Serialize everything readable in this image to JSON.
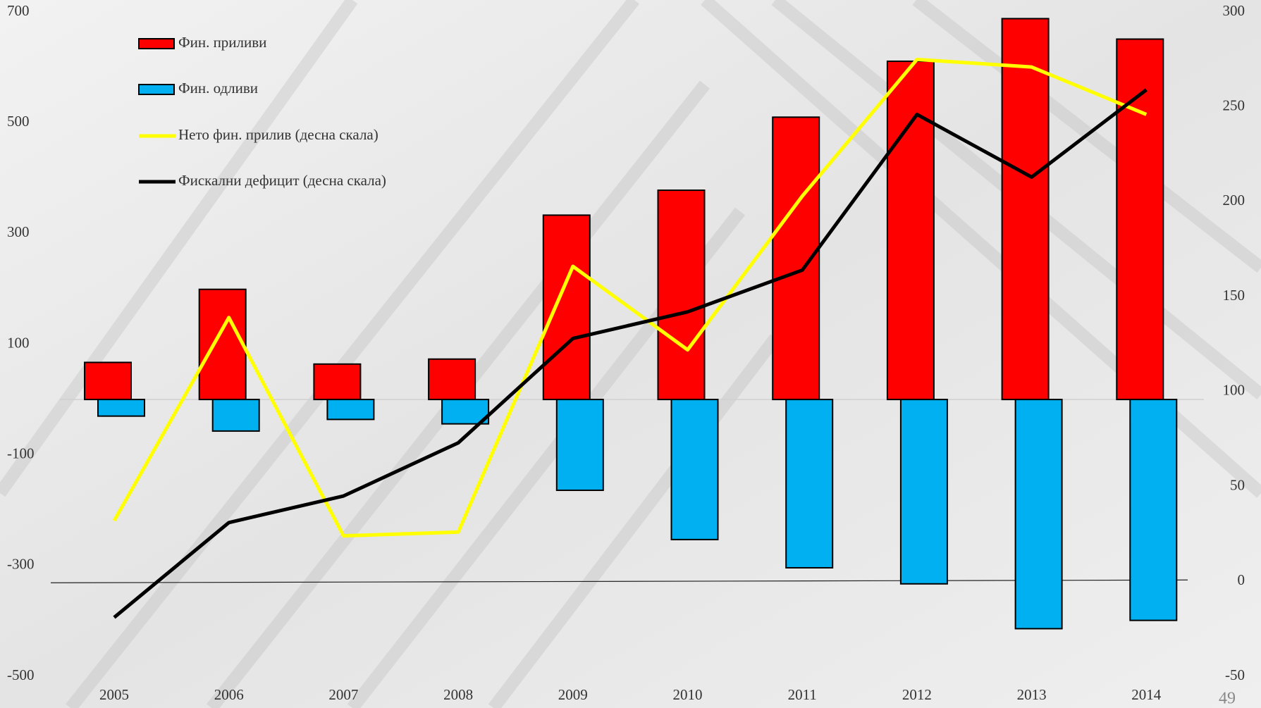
{
  "chart_data": {
    "type": "bar",
    "categories": [
      "2005",
      "2006",
      "2007",
      "2008",
      "2009",
      "2010",
      "2011",
      "2012",
      "2013",
      "2014"
    ],
    "series": [
      {
        "name": "Фин. приливи",
        "type": "bar",
        "color": "#ff0000",
        "values": [
          67,
          199,
          64,
          73,
          333,
          378,
          510,
          611,
          688,
          651
        ]
      },
      {
        "name": "Фин. одливи",
        "type": "bar",
        "color": "#00b0f0",
        "values": [
          -30,
          -57,
          -36,
          -44,
          -164,
          -253,
          -304,
          -333,
          -414,
          -399
        ]
      },
      {
        "name": "Нето фин. прилив (десна скала)",
        "type": "line",
        "axis": "y2",
        "color": "#ffff00",
        "values": [
          32,
          139,
          24,
          26,
          166,
          122,
          203,
          275,
          271,
          246
        ]
      },
      {
        "name": "Фискални дефицит (десна скала)",
        "type": "line",
        "axis": "y2",
        "color": "#000000",
        "values": [
          -19,
          31,
          45,
          73,
          128,
          142,
          164,
          246,
          213,
          259
        ]
      }
    ],
    "ylim": [
      -500,
      700
    ],
    "yticks": [
      700,
      500,
      300,
      100,
      -100,
      -300,
      -500
    ],
    "y2lim": [
      -50,
      300
    ],
    "y2ticks": [
      300,
      250,
      200,
      150,
      100,
      50,
      0,
      -50
    ]
  },
  "page_number": "49"
}
